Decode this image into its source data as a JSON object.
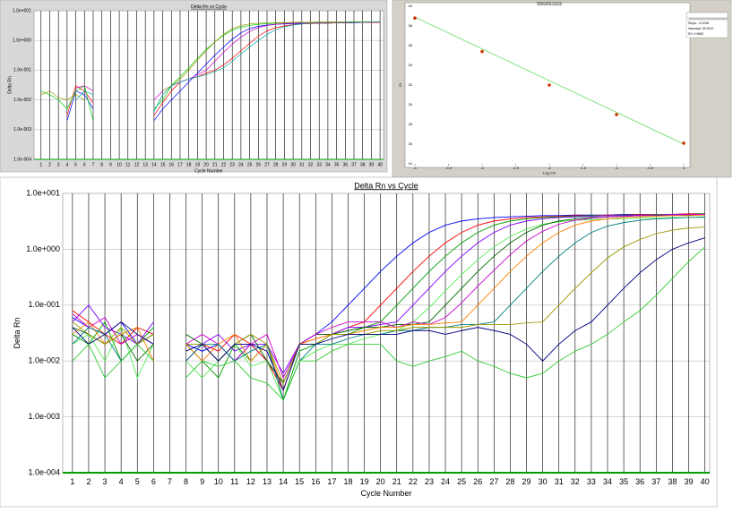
{
  "chart_data": [
    {
      "type": "line",
      "title": "Delta Rn vs Cycle",
      "x_label": "Cycle Number",
      "y_label": "Delta Rn",
      "log_y": true,
      "grid": true,
      "xlim": [
        0.2,
        40.4
      ],
      "ylim": [
        0.0001,
        10
      ],
      "xticks": [
        1,
        2,
        3,
        4,
        5,
        6,
        7,
        8,
        9,
        10,
        11,
        12,
        13,
        14,
        15,
        16,
        17,
        18,
        19,
        20,
        21,
        22,
        23,
        24,
        25,
        26,
        27,
        28,
        29,
        30,
        31,
        32,
        33,
        34,
        35,
        36,
        37,
        38,
        39,
        40
      ],
      "yticks": [
        {
          "value": 10,
          "label": "1.0e+001"
        },
        {
          "value": 1,
          "label": "1.0e+000"
        },
        {
          "value": 0.1,
          "label": "1.0e-001"
        },
        {
          "value": 0.01,
          "label": "1.0e-002"
        },
        {
          "value": 0.001,
          "label": "1.0e-003"
        },
        {
          "value": 0.0001,
          "label": "1.0e-004"
        }
      ],
      "x": [
        1,
        2,
        3,
        4,
        5,
        6,
        7,
        8,
        9,
        10,
        11,
        12,
        13,
        14,
        15,
        16,
        17,
        18,
        19,
        20,
        21,
        22,
        23,
        24,
        25,
        26,
        27,
        28,
        29,
        30,
        31,
        32,
        33,
        34,
        35,
        36,
        37,
        38,
        39,
        40
      ],
      "series": [
        {
          "color": "#0000ff",
          "values": [
            null,
            null,
            null,
            0.002,
            0.02,
            0.015,
            0.005,
            null,
            null,
            null,
            null,
            null,
            null,
            0.002,
            0.005,
            0.01,
            0.02,
            0.04,
            0.08,
            0.16,
            0.32,
            0.6,
            1.1,
            1.8,
            2.5,
            3.0,
            3.3,
            3.5,
            3.6,
            3.7,
            3.7,
            3.8,
            3.8,
            3.8,
            3.9,
            3.9,
            3.9,
            4.0,
            4.0,
            4.0
          ]
        },
        {
          "color": "#ff0000",
          "values": [
            null,
            null,
            null,
            0.003,
            0.03,
            0.02,
            0.008,
            null,
            null,
            null,
            null,
            null,
            null,
            0.003,
            0.008,
            0.02,
            0.04,
            0.05,
            0.06,
            0.08,
            0.1,
            0.15,
            0.25,
            0.45,
            0.8,
            1.4,
            2.1,
            2.7,
            3.1,
            3.4,
            3.6,
            3.7,
            3.8,
            3.8,
            3.9,
            3.9,
            4.0,
            4.0,
            4.0,
            4.0
          ]
        },
        {
          "color": "#00cc00",
          "values": [
            0.02,
            0.015,
            0.01,
            0.005,
            0.02,
            0.03,
            0.002,
            null,
            null,
            null,
            null,
            null,
            null,
            0.005,
            0.01,
            0.03,
            0.06,
            0.12,
            0.25,
            0.5,
            0.9,
            1.5,
            2.2,
            2.8,
            3.2,
            3.5,
            3.7,
            3.8,
            3.9,
            3.9,
            4.0,
            4.0,
            4.0,
            4.1,
            4.1,
            4.1,
            4.1,
            4.2,
            4.2,
            4.2
          ]
        },
        {
          "color": "#cc00cc",
          "values": [
            null,
            null,
            null,
            null,
            0.025,
            0.03,
            0.02,
            null,
            null,
            null,
            null,
            null,
            null,
            0.01,
            0.02,
            0.03,
            0.04,
            0.05,
            0.07,
            0.1,
            0.2,
            0.4,
            0.75,
            1.3,
            2.0,
            2.7,
            3.2,
            3.5,
            3.7,
            3.8,
            3.9,
            3.9,
            4.0,
            4.0,
            4.0,
            4.1,
            4.1,
            4.1,
            4.1,
            4.2
          ]
        },
        {
          "color": "#999900",
          "values": [
            0.015,
            0.02,
            0.012,
            0.01,
            0.015,
            0.01,
            null,
            null,
            null,
            null,
            null,
            null,
            null,
            null,
            0.02,
            0.03,
            0.05,
            0.1,
            0.22,
            0.45,
            0.9,
            1.6,
            2.5,
            3.2,
            3.6,
            3.8,
            3.9,
            4.0,
            4.0,
            4.1,
            4.1,
            4.1,
            4.2,
            4.2,
            4.2,
            4.2,
            4.3,
            4.3,
            4.3,
            4.3
          ]
        },
        {
          "color": "#00aaaa",
          "values": [
            null,
            null,
            null,
            null,
            0.01,
            0.02,
            0.015,
            null,
            null,
            null,
            null,
            null,
            null,
            0.004,
            0.015,
            0.03,
            0.04,
            0.05,
            0.06,
            0.07,
            0.09,
            0.12,
            0.2,
            0.35,
            0.6,
            1.0,
            1.6,
            2.3,
            2.9,
            3.3,
            3.6,
            3.8,
            3.9,
            4.0,
            4.0,
            4.1,
            4.1,
            4.1,
            4.2,
            4.2
          ]
        }
      ]
    },
    {
      "type": "scatter",
      "title": "Standard Curve",
      "x_label": "Log CO",
      "y_label": "Ct",
      "grid": false,
      "xlim": [
        -4,
        0
      ],
      "ylim": [
        24,
        40
      ],
      "xticks": [
        -4,
        -3.5,
        -3,
        -2.5,
        -2,
        -1.5,
        -1,
        -0.5,
        0
      ],
      "yticks": [
        24,
        26,
        28,
        30,
        32,
        34,
        36,
        38,
        40
      ],
      "series": [
        {
          "color": "#cc3300",
          "x": [
            -4,
            -3,
            -2,
            -1,
            0
          ],
          "values": [
            38.8,
            35.4,
            32,
            29,
            26.1
          ]
        }
      ],
      "fit_line": {
        "color": "#66dd66",
        "x": [
          -4,
          0
        ],
        "values": [
          38.9,
          26
        ]
      },
      "stats": [
        "Slope: -3.2248",
        "Intercept: 25.9912",
        "R2: 0.9982"
      ]
    },
    {
      "type": "line",
      "title": "Delta Rn vs Cycle",
      "x_label": "Cycle Number",
      "y_label": "Delta Rn",
      "log_y": true,
      "grid": true,
      "xlim": [
        0.4,
        40.3
      ],
      "ylim": [
        0.0001,
        10
      ],
      "xticks": [
        1,
        2,
        3,
        4,
        5,
        6,
        7,
        8,
        9,
        10,
        11,
        12,
        13,
        14,
        15,
        16,
        17,
        18,
        19,
        20,
        21,
        22,
        23,
        24,
        25,
        26,
        27,
        28,
        29,
        30,
        31,
        32,
        33,
        34,
        35,
        36,
        37,
        38,
        39,
        40
      ],
      "yticks": [
        {
          "value": 10,
          "label": "1.0e+001"
        },
        {
          "value": 1,
          "label": "1.0e+000"
        },
        {
          "value": 0.1,
          "label": "1.0e-001"
        },
        {
          "value": 0.01,
          "label": "1.0e-002"
        },
        {
          "value": 0.001,
          "label": "1.0e-003"
        },
        {
          "value": 0.0001,
          "label": "1.0e-004"
        }
      ],
      "x": [
        1,
        2,
        3,
        4,
        5,
        6,
        7,
        8,
        9,
        10,
        11,
        12,
        13,
        14,
        15,
        16,
        17,
        18,
        19,
        20,
        21,
        22,
        23,
        24,
        25,
        26,
        27,
        28,
        29,
        30,
        31,
        32,
        33,
        34,
        35,
        36,
        37,
        38,
        39,
        40
      ],
      "series": [
        {
          "color": "#0000ff",
          "values": [
            0.06,
            0.04,
            0.03,
            0.05,
            0.02,
            0.03,
            null,
            0.02,
            0.015,
            0.02,
            0.01,
            0.02,
            0.01,
            0.004,
            0.02,
            0.03,
            0.05,
            0.1,
            0.2,
            0.4,
            0.75,
            1.3,
            2.0,
            2.7,
            3.2,
            3.5,
            3.7,
            3.8,
            3.9,
            4.0,
            4.0,
            4.1,
            4.1,
            4.1,
            4.2,
            4.2,
            4.2,
            4.2,
            4.3,
            4.3
          ]
        },
        {
          "color": "#ff0000",
          "values": [
            0.08,
            0.05,
            0.03,
            0.02,
            0.04,
            0.03,
            null,
            0.01,
            0.02,
            0.015,
            0.03,
            0.02,
            0.01,
            0.003,
            0.02,
            0.025,
            0.03,
            0.04,
            0.05,
            0.1,
            0.2,
            0.4,
            0.75,
            1.3,
            2.0,
            2.7,
            3.2,
            3.5,
            3.7,
            3.8,
            3.9,
            4.0,
            4.0,
            4.1,
            4.1,
            4.2,
            4.2,
            4.2,
            4.3,
            4.3
          ]
        },
        {
          "color": "#00a000",
          "values": [
            0.03,
            0.02,
            0.05,
            0.01,
            0.02,
            0.04,
            null,
            0.02,
            0.01,
            0.005,
            0.02,
            0.01,
            0.02,
            0.002,
            0.015,
            0.02,
            0.03,
            0.03,
            0.04,
            0.05,
            0.1,
            0.2,
            0.4,
            0.75,
            1.3,
            2.0,
            2.7,
            3.2,
            3.5,
            3.7,
            3.8,
            3.9,
            4.0,
            4.0,
            4.1,
            4.1,
            4.2,
            4.2,
            4.2,
            4.3
          ]
        },
        {
          "color": "#8000ff",
          "values": [
            0.05,
            0.1,
            0.04,
            0.03,
            0.02,
            0.05,
            null,
            0.01,
            0.02,
            0.03,
            0.015,
            0.02,
            0.02,
            0.006,
            0.02,
            0.03,
            0.03,
            0.04,
            0.04,
            0.045,
            0.05,
            0.1,
            0.2,
            0.4,
            0.75,
            1.3,
            2.0,
            2.7,
            3.2,
            3.5,
            3.7,
            3.8,
            3.9,
            4.0,
            4.0,
            4.1,
            4.1,
            4.2,
            4.2,
            4.2
          ]
        },
        {
          "color": "#55ee55",
          "values": [
            0.02,
            0.03,
            0.01,
            0.04,
            0.005,
            0.02,
            null,
            0.01,
            0.005,
            0.01,
            0.02,
            0.008,
            0.01,
            0.002,
            0.01,
            0.015,
            0.02,
            0.02,
            0.025,
            0.03,
            0.035,
            0.05,
            0.09,
            0.18,
            0.35,
            0.65,
            1.1,
            1.7,
            2.3,
            2.8,
            3.1,
            3.3,
            3.4,
            3.5,
            3.5,
            3.6,
            3.6,
            3.7,
            3.7,
            3.7
          ]
        },
        {
          "color": "#006600",
          "values": [
            0.04,
            0.03,
            0.02,
            0.03,
            0.01,
            0.02,
            null,
            0.03,
            0.02,
            0.01,
            0.02,
            0.03,
            0.01,
            0.004,
            0.02,
            0.03,
            0.03,
            0.035,
            0.04,
            0.04,
            0.045,
            0.045,
            0.05,
            0.1,
            0.2,
            0.4,
            0.75,
            1.3,
            2.0,
            2.7,
            3.2,
            3.5,
            3.7,
            3.8,
            3.9,
            4.0,
            4.0,
            4.1,
            4.1,
            4.2
          ]
        },
        {
          "color": "#cc00cc",
          "values": [
            0.07,
            0.04,
            0.06,
            0.02,
            0.03,
            0.02,
            null,
            0.02,
            0.03,
            0.02,
            0.01,
            0.02,
            0.03,
            0.005,
            0.02,
            0.03,
            0.04,
            0.05,
            0.05,
            0.05,
            0.04,
            0.05,
            0.045,
            0.06,
            0.11,
            0.22,
            0.42,
            0.8,
            1.4,
            2.1,
            2.8,
            3.3,
            3.6,
            3.8,
            3.9,
            4.0,
            4.1,
            4.1,
            4.2,
            4.2
          ]
        },
        {
          "color": "#ff8000",
          "values": [
            0.03,
            0.05,
            0.02,
            0.03,
            0.04,
            0.01,
            null,
            0.02,
            0.01,
            0.02,
            0.03,
            0.01,
            0.02,
            0.003,
            0.02,
            0.025,
            0.03,
            0.03,
            0.035,
            0.04,
            0.04,
            0.045,
            0.045,
            0.048,
            0.05,
            0.1,
            0.2,
            0.4,
            0.75,
            1.3,
            2.0,
            2.7,
            3.2,
            3.5,
            3.7,
            3.8,
            3.9,
            4.0,
            4.0,
            4.1
          ]
        },
        {
          "color": "#008080",
          "values": [
            0.02,
            0.04,
            0.03,
            0.01,
            0.02,
            0.03,
            null,
            0.01,
            0.02,
            0.02,
            0.01,
            0.015,
            0.02,
            0.002,
            0.01,
            0.02,
            0.02,
            0.025,
            0.03,
            0.03,
            0.035,
            0.035,
            0.04,
            0.04,
            0.045,
            0.045,
            0.05,
            0.1,
            0.2,
            0.4,
            0.75,
            1.3,
            2.0,
            2.6,
            3.0,
            3.3,
            3.5,
            3.6,
            3.7,
            3.8
          ]
        },
        {
          "color": "#999900",
          "values": [
            0.05,
            0.03,
            0.02,
            0.04,
            0.02,
            0.03,
            null,
            0.02,
            0.02,
            0.01,
            0.02,
            0.03,
            0.02,
            0.004,
            0.02,
            0.02,
            0.03,
            0.03,
            0.03,
            0.035,
            0.035,
            0.04,
            0.04,
            0.04,
            0.04,
            0.045,
            0.045,
            0.045,
            0.048,
            0.05,
            0.1,
            0.2,
            0.38,
            0.7,
            1.1,
            1.5,
            1.9,
            2.2,
            2.4,
            2.5
          ]
        },
        {
          "color": "#000080",
          "values": [
            0.04,
            0.02,
            0.03,
            0.05,
            0.03,
            0.02,
            null,
            0.015,
            0.02,
            0.01,
            0.02,
            0.02,
            0.015,
            0.003,
            0.02,
            0.02,
            0.025,
            0.03,
            0.03,
            0.03,
            0.03,
            0.035,
            0.035,
            0.03,
            0.035,
            0.04,
            0.035,
            0.03,
            0.02,
            0.01,
            0.02,
            0.035,
            0.05,
            0.1,
            0.2,
            0.38,
            0.65,
            1.0,
            1.3,
            1.6
          ]
        },
        {
          "color": "#33cc33",
          "values": [
            0.01,
            0.02,
            0.005,
            0.01,
            0.02,
            0.01,
            null,
            0.005,
            0.01,
            0.008,
            0.01,
            0.005,
            0.004,
            0.002,
            0.01,
            0.01,
            0.015,
            0.02,
            0.02,
            0.02,
            0.01,
            0.008,
            0.01,
            0.012,
            0.015,
            0.01,
            0.008,
            0.006,
            0.005,
            0.006,
            0.01,
            0.015,
            0.02,
            0.03,
            0.05,
            0.08,
            0.15,
            0.3,
            0.6,
            1.1
          ]
        }
      ]
    }
  ]
}
